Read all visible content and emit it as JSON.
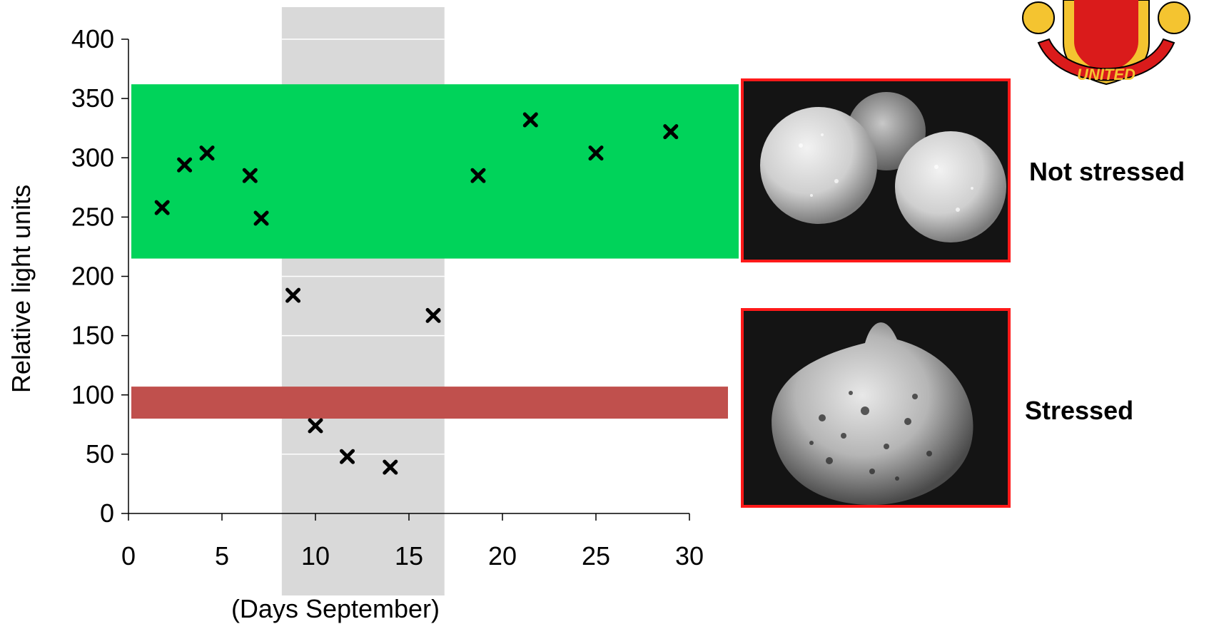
{
  "chart_data": {
    "type": "scatter",
    "title": "",
    "xlabel": "(Days September)",
    "ylabel": "Relative light units",
    "xlim": [
      0,
      30
    ],
    "ylim": [
      0,
      400
    ],
    "x_ticks": [
      "0",
      "5",
      "10",
      "15",
      "20",
      "25",
      "30"
    ],
    "y_ticks": [
      "0",
      "50",
      "100",
      "150",
      "200",
      "250",
      "300",
      "350",
      "400"
    ],
    "marker": "x",
    "grid": true,
    "shaded_region_x": [
      8.2,
      16.9
    ],
    "bands": [
      {
        "y_range": [
          215,
          362
        ],
        "color": "#00d35a"
      },
      {
        "y_range": [
          80,
          107
        ],
        "color": "#c0504d"
      }
    ],
    "points": [
      {
        "x": 1.8,
        "y": 258
      },
      {
        "x": 3.0,
        "y": 294
      },
      {
        "x": 4.2,
        "y": 304
      },
      {
        "x": 6.5,
        "y": 285
      },
      {
        "x": 7.1,
        "y": 249
      },
      {
        "x": 8.8,
        "y": 184
      },
      {
        "x": 10.0,
        "y": 74
      },
      {
        "x": 11.7,
        "y": 48
      },
      {
        "x": 14.0,
        "y": 39
      },
      {
        "x": 16.3,
        "y": 167
      },
      {
        "x": 18.7,
        "y": 285
      },
      {
        "x": 21.5,
        "y": 332
      },
      {
        "x": 25.0,
        "y": 304
      },
      {
        "x": 29.0,
        "y": 322
      }
    ]
  },
  "panels": {
    "not_stressed_label": "Not stressed",
    "stressed_label": "Stressed"
  },
  "logo": {
    "name": "manchester-united-crest",
    "text": "UNITED"
  },
  "colors": {
    "photo_border": "#ff1a1a",
    "green_band": "#00d35a",
    "red_band": "#c0504d",
    "shade": "#d9d9d9",
    "logo_red": "#da1b1b",
    "logo_gold": "#f4c430"
  }
}
